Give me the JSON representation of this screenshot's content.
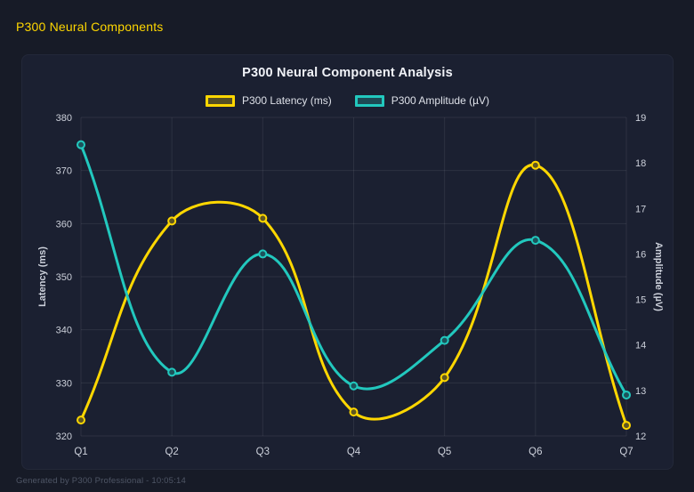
{
  "page": {
    "header_title": "P300 Neural Components",
    "footer": "Generated by P300 Professional - 10:05:14"
  },
  "colors": {
    "background": "#171b27",
    "panel": "#1b2031",
    "grid": "rgba(255,255,255,0.08)",
    "latency": "#ffd700",
    "amplitude": "#22c8be",
    "header_text": "#ffd700",
    "tick_text": "#ccd0da",
    "title_text": "#f1f3f8",
    "footer_text": "#4f5666"
  },
  "chart_data": {
    "type": "line",
    "title": "P300 Neural Component Analysis",
    "categories": [
      "Q1",
      "Q2",
      "Q3",
      "Q4",
      "Q5",
      "Q6",
      "Q7"
    ],
    "series": [
      {
        "name": "P300 Latency (ms)",
        "axis": "left",
        "color": "#ffd700",
        "values": [
          323,
          360.5,
          361,
          324.5,
          331,
          371,
          322
        ]
      },
      {
        "name": "P300 Amplitude (µV)",
        "axis": "right",
        "color": "#22c8be",
        "values": [
          18.4,
          13.4,
          16.0,
          13.1,
          14.1,
          16.3,
          12.9
        ]
      }
    ],
    "left_axis": {
      "label": "Latency (ms)",
      "min": 320,
      "max": 380,
      "step": 10
    },
    "right_axis": {
      "label": "Amplitude (µV)",
      "min": 12,
      "max": 19,
      "step": 1
    },
    "grid": true,
    "legend_position": "top",
    "curve": "smooth-spline-tension-0.4"
  }
}
